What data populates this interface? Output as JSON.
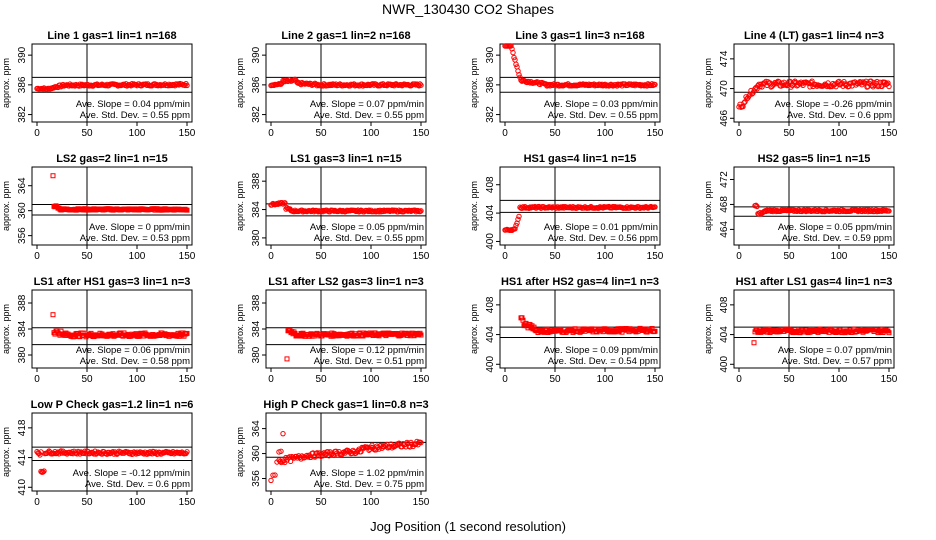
{
  "figure": {
    "title": "NWR_130430  CO2 Shapes",
    "xlabel": "Jog Position (1 second resolution)"
  },
  "colors": {
    "points": "#ff0000",
    "axes": "#000000",
    "background": "#ffffff"
  },
  "chart_data": [
    {
      "type": "scatter",
      "title": "Line 1 gas=1 lin=1 n=168",
      "ylabel": "approx. ppm",
      "xlim": [
        -5,
        155
      ],
      "ylim": [
        381,
        391.5
      ],
      "xticks": [
        0,
        50,
        100,
        150
      ],
      "yticks": [
        382,
        386,
        390
      ],
      "hlines": [
        387,
        385
      ],
      "vline": 50,
      "slope_text": "Ave. Slope = 0.04  ppm/min",
      "std_text": "Ave. Std. Dev. = 0.55  ppm",
      "segments": [
        {
          "x": [
            0,
            8
          ],
          "y": [
            385.5,
            385.5
          ],
          "n": 9,
          "jitter": 0.1,
          "shape": "circle"
        },
        {
          "x": [
            9,
            16
          ],
          "y": [
            385.4,
            385.6
          ],
          "n": 8,
          "jitter": 0.1,
          "shape": "circle"
        },
        {
          "x": [
            17,
            26
          ],
          "y": [
            385.7,
            385.9
          ],
          "n": 10,
          "jitter": 0.15,
          "shape": "circle"
        },
        {
          "x": [
            27,
            150
          ],
          "y": [
            385.95,
            386.05
          ],
          "n": 124,
          "jitter": 0.15,
          "shape": "circle"
        }
      ]
    },
    {
      "type": "scatter",
      "title": "Line 2 gas=1 lin=2 n=168",
      "ylabel": "approx. ppm",
      "xlim": [
        -5,
        155
      ],
      "ylim": [
        381,
        391.5
      ],
      "xticks": [
        0,
        50,
        100,
        150
      ],
      "yticks": [
        382,
        386,
        390
      ],
      "hlines": [
        387,
        385
      ],
      "vline": 50,
      "slope_text": "Ave. Slope = 0.07  ppm/min",
      "std_text": "Ave. Std. Dev. = 0.55  ppm",
      "segments": [
        {
          "x": [
            0,
            10
          ],
          "y": [
            386.0,
            386.1
          ],
          "n": 11,
          "jitter": 0.1,
          "shape": "circle"
        },
        {
          "x": [
            11,
            25
          ],
          "y": [
            386.4,
            386.6
          ],
          "n": 15,
          "jitter": 0.2,
          "shape": "circle"
        },
        {
          "x": [
            26,
            45
          ],
          "y": [
            386.2,
            386.05
          ],
          "n": 20,
          "jitter": 0.15,
          "shape": "circle"
        },
        {
          "x": [
            46,
            150
          ],
          "y": [
            386.0,
            386.0
          ],
          "n": 105,
          "jitter": 0.15,
          "shape": "circle"
        }
      ]
    },
    {
      "type": "scatter",
      "title": "Line 3 gas=1 lin=3 n=168",
      "ylabel": "approx. ppm",
      "xlim": [
        -5,
        155
      ],
      "ylim": [
        381,
        391.5
      ],
      "xticks": [
        0,
        50,
        100,
        150
      ],
      "yticks": [
        382,
        386,
        390
      ],
      "hlines": [
        387,
        385
      ],
      "vline": 50,
      "slope_text": "Ave. Slope = 0.03  ppm/min",
      "std_text": "Ave. Std. Dev. = 0.55  ppm",
      "segments": [
        {
          "x": [
            0,
            6
          ],
          "y": [
            391.4,
            391.2
          ],
          "n": 7,
          "jitter": 0.1,
          "shape": "circle"
        },
        {
          "x": [
            7,
            15
          ],
          "y": [
            390.8,
            387.0
          ],
          "n": 9,
          "jitter": 0.2,
          "shape": "circle"
        },
        {
          "x": [
            16,
            40
          ],
          "y": [
            386.6,
            386.1
          ],
          "n": 25,
          "jitter": 0.15,
          "shape": "circle"
        },
        {
          "x": [
            41,
            150
          ],
          "y": [
            386.0,
            386.0
          ],
          "n": 110,
          "jitter": 0.15,
          "shape": "circle"
        }
      ]
    },
    {
      "type": "scatter",
      "title": "Line 4 (LT) gas=1 lin=4 n=3",
      "ylabel": "approx. ppm",
      "xlim": [
        -5,
        155
      ],
      "ylim": [
        465.5,
        476
      ],
      "xticks": [
        0,
        50,
        100,
        150
      ],
      "yticks": [
        466,
        470,
        474
      ],
      "hlines": [
        471.6,
        469.5
      ],
      "vline": 50,
      "slope_text": "Ave. Slope = -0.26  ppm/min",
      "std_text": "Ave. Std. Dev. = 0.6  ppm",
      "segments": [
        {
          "x": [
            0,
            6
          ],
          "y": [
            467.6,
            468.0
          ],
          "n": 7,
          "jitter": 0.3,
          "shape": "circle"
        },
        {
          "x": [
            7,
            18
          ],
          "y": [
            468.8,
            470.2
          ],
          "n": 12,
          "jitter": 0.3,
          "shape": "circle"
        },
        {
          "x": [
            19,
            150
          ],
          "y": [
            470.6,
            470.6
          ],
          "n": 132,
          "jitter": 0.4,
          "shape": "circle"
        }
      ]
    },
    {
      "type": "scatter",
      "title": "LS2 gas=2 lin=1 n=15",
      "ylabel": "approx. ppm",
      "xlim": [
        -5,
        155
      ],
      "ylim": [
        354.5,
        367
      ],
      "xticks": [
        0,
        50,
        100,
        150
      ],
      "yticks": [
        356,
        360,
        364
      ],
      "hlines": [
        361,
        359.3
      ],
      "vline": 50,
      "slope_text": "Ave. Slope = 0  ppm/min",
      "std_text": "Ave. Std. Dev. = 0.53  ppm",
      "segments": [
        {
          "x": [
            16,
            16
          ],
          "y": [
            365.6,
            365.6
          ],
          "n": 1,
          "jitter": 0,
          "shape": "square"
        },
        {
          "x": [
            17,
            22
          ],
          "y": [
            360.8,
            360.5
          ],
          "n": 6,
          "jitter": 0.15,
          "shape": "square"
        },
        {
          "x": [
            23,
            150
          ],
          "y": [
            360.2,
            360.2
          ],
          "n": 128,
          "jitter": 0.12,
          "shape": "square"
        }
      ]
    },
    {
      "type": "scatter",
      "title": "LS1 gas=3 lin=1 n=15",
      "ylabel": "approx. ppm",
      "xlim": [
        -5,
        155
      ],
      "ylim": [
        379,
        390
      ],
      "xticks": [
        0,
        50,
        100,
        150
      ],
      "yticks": [
        380,
        384,
        388
      ],
      "hlines": [
        384.8,
        383.1
      ],
      "vline": 50,
      "slope_text": "Ave. Slope = 0.05  ppm/min",
      "std_text": "Ave. Std. Dev. = 0.55  ppm",
      "segments": [
        {
          "x": [
            0,
            14
          ],
          "y": [
            384.7,
            384.9
          ],
          "n": 15,
          "jitter": 0.12,
          "shape": "circle"
        },
        {
          "x": [
            15,
            20
          ],
          "y": [
            384.2,
            383.9
          ],
          "n": 6,
          "jitter": 0.15,
          "shape": "circle"
        },
        {
          "x": [
            21,
            150
          ],
          "y": [
            383.8,
            383.8
          ],
          "n": 130,
          "jitter": 0.12,
          "shape": "circle"
        }
      ]
    },
    {
      "type": "scatter",
      "title": "HS1 gas=4 lin=1 n=15",
      "ylabel": "approx. ppm",
      "xlim": [
        -5,
        155
      ],
      "ylim": [
        399.5,
        410.5
      ],
      "xticks": [
        0,
        50,
        100,
        150
      ],
      "yticks": [
        400,
        404,
        408
      ],
      "hlines": [
        405.8,
        404.1
      ],
      "vline": 50,
      "slope_text": "Ave. Slope = 0.01  ppm/min",
      "std_text": "Ave. Std. Dev. = 0.56  ppm",
      "segments": [
        {
          "x": [
            0,
            10
          ],
          "y": [
            401.6,
            401.7
          ],
          "n": 11,
          "jitter": 0.1,
          "shape": "circle"
        },
        {
          "x": [
            11,
            14
          ],
          "y": [
            402.2,
            403.6
          ],
          "n": 4,
          "jitter": 0.1,
          "shape": "circle"
        },
        {
          "x": [
            15,
            150
          ],
          "y": [
            404.8,
            404.8
          ],
          "n": 136,
          "jitter": 0.12,
          "shape": "circle"
        }
      ]
    },
    {
      "type": "scatter",
      "title": "HS2 gas=5 lin=1 n=15",
      "ylabel": "approx. ppm",
      "xlim": [
        -5,
        155
      ],
      "ylim": [
        461.5,
        474
      ],
      "xticks": [
        0,
        50,
        100,
        150
      ],
      "yticks": [
        464,
        468,
        472
      ],
      "hlines": [
        467.6,
        466.1
      ],
      "vline": 50,
      "slope_text": "Ave. Slope = 0.05  ppm/min",
      "std_text": "Ave. Std. Dev. = 0.59  ppm",
      "segments": [
        {
          "x": [
            16,
            18
          ],
          "y": [
            467.9,
            467.7
          ],
          "n": 3,
          "jitter": 0.1,
          "shape": "circle"
        },
        {
          "x": [
            19,
            26
          ],
          "y": [
            466.4,
            466.8
          ],
          "n": 8,
          "jitter": 0.2,
          "shape": "circle"
        },
        {
          "x": [
            27,
            150
          ],
          "y": [
            467.0,
            467.0
          ],
          "n": 124,
          "jitter": 0.14,
          "shape": "circle"
        }
      ]
    },
    {
      "type": "scatter",
      "title": "LS1 after HS1 gas=3 lin=1 n=3",
      "ylabel": "approx. ppm",
      "xlim": [
        -5,
        155
      ],
      "ylim": [
        378,
        390
      ],
      "xticks": [
        0,
        50,
        100,
        150
      ],
      "yticks": [
        380,
        384,
        388
      ],
      "hlines": [
        384.2,
        381.6
      ],
      "vline": 50,
      "slope_text": "Ave. Slope = 0.06  ppm/min",
      "std_text": "Ave. Std. Dev. = 0.58  ppm",
      "segments": [
        {
          "x": [
            16,
            16
          ],
          "y": [
            386.2,
            386.2
          ],
          "n": 1,
          "jitter": 0,
          "shape": "square"
        },
        {
          "x": [
            17,
            24
          ],
          "y": [
            383.6,
            383.4
          ],
          "n": 8,
          "jitter": 0.4,
          "shape": "square"
        },
        {
          "x": [
            25,
            150
          ],
          "y": [
            383.1,
            383.1
          ],
          "n": 126,
          "jitter": 0.3,
          "shape": "square"
        }
      ]
    },
    {
      "type": "scatter",
      "title": "LS1 after LS2 gas=3 lin=1 n=3",
      "ylabel": "approx. ppm",
      "xlim": [
        -5,
        155
      ],
      "ylim": [
        378,
        390
      ],
      "xticks": [
        0,
        50,
        100,
        150
      ],
      "yticks": [
        380,
        384,
        388
      ],
      "hlines": [
        384.2,
        381.6
      ],
      "vline": 50,
      "slope_text": "Ave. Slope = 0.12  ppm/min",
      "std_text": "Ave. Std. Dev. = 0.51  ppm",
      "segments": [
        {
          "x": [
            16,
            16
          ],
          "y": [
            379.4,
            379.4
          ],
          "n": 1,
          "jitter": 0,
          "shape": "square"
        },
        {
          "x": [
            17,
            24
          ],
          "y": [
            383.8,
            383.4
          ],
          "n": 8,
          "jitter": 0.3,
          "shape": "square"
        },
        {
          "x": [
            25,
            150
          ],
          "y": [
            383.1,
            383.2
          ],
          "n": 126,
          "jitter": 0.25,
          "shape": "square"
        }
      ]
    },
    {
      "type": "scatter",
      "title": "HS1 after HS2 gas=4 lin=1 n=3",
      "ylabel": "approx. ppm",
      "xlim": [
        -5,
        155
      ],
      "ylim": [
        399.5,
        410
      ],
      "xticks": [
        0,
        50,
        100,
        150
      ],
      "yticks": [
        400,
        404,
        408
      ],
      "hlines": [
        405.0,
        403.6
      ],
      "vline": 50,
      "slope_text": "Ave. Slope = 0.09  ppm/min",
      "std_text": "Ave. Std. Dev. = 0.54  ppm",
      "segments": [
        {
          "x": [
            16,
            18
          ],
          "y": [
            406.4,
            405.9
          ],
          "n": 3,
          "jitter": 0.2,
          "shape": "square"
        },
        {
          "x": [
            19,
            30
          ],
          "y": [
            405.3,
            404.9
          ],
          "n": 12,
          "jitter": 0.3,
          "shape": "square"
        },
        {
          "x": [
            31,
            150
          ],
          "y": [
            404.5,
            404.6
          ],
          "n": 120,
          "jitter": 0.25,
          "shape": "square"
        }
      ]
    },
    {
      "type": "scatter",
      "title": "HS1 after LS1 gas=4 lin=1 n=3",
      "ylabel": "approx. ppm",
      "xlim": [
        -5,
        155
      ],
      "ylim": [
        399.5,
        410
      ],
      "xticks": [
        0,
        50,
        100,
        150
      ],
      "yticks": [
        400,
        404,
        408
      ],
      "hlines": [
        405.0,
        403.6
      ],
      "vline": 50,
      "slope_text": "Ave. Slope = 0.07  ppm/min",
      "std_text": "Ave. Std. Dev. = 0.57  ppm",
      "segments": [
        {
          "x": [
            15,
            15
          ],
          "y": [
            402.9,
            402.9
          ],
          "n": 1,
          "jitter": 0,
          "shape": "square"
        },
        {
          "x": [
            16,
            150
          ],
          "y": [
            404.5,
            404.5
          ],
          "n": 135,
          "jitter": 0.25,
          "shape": "square"
        }
      ]
    },
    {
      "type": "scatter",
      "title": "Low P Check gas=1.2 lin=1 n=6",
      "ylabel": "approx. ppm",
      "xlim": [
        -5,
        155
      ],
      "ylim": [
        409.5,
        420
      ],
      "xticks": [
        0,
        50,
        100,
        150
      ],
      "yticks": [
        410,
        414,
        418
      ],
      "hlines": [
        415.4,
        413.6
      ],
      "vline": 50,
      "slope_text": "Ave. Slope = -0.12  ppm/min",
      "std_text": "Ave. Std. Dev. = 0.6  ppm",
      "segments": [
        {
          "x": [
            0,
            4
          ],
          "y": [
            414.8,
            414.6
          ],
          "n": 5,
          "jitter": 0.3,
          "shape": "circle"
        },
        {
          "x": [
            4,
            7
          ],
          "y": [
            412.0,
            412.2
          ],
          "n": 4,
          "jitter": 0.15,
          "shape": "circle"
        },
        {
          "x": [
            8,
            150
          ],
          "y": [
            414.7,
            414.6
          ],
          "n": 143,
          "jitter": 0.2,
          "shape": "circle"
        }
      ]
    },
    {
      "type": "scatter",
      "title": "High P Check gas=1 lin=0.8 n=3",
      "ylabel": "approx. ppm",
      "xlim": [
        -5,
        155
      ],
      "ylim": [
        354,
        366.5
      ],
      "xticks": [
        0,
        50,
        100,
        150
      ],
      "yticks": [
        356,
        360,
        364
      ],
      "hlines": [
        361.8,
        359.4
      ],
      "vline": 50,
      "slope_text": "Ave. Slope = 1.02  ppm/min",
      "std_text": "Ave. Std. Dev. = 0.75  ppm",
      "segments": [
        {
          "x": [
            0,
            12
          ],
          "y": [
            355.0,
            362.6
          ],
          "n": 7,
          "jitter": 1.2,
          "shape": "circle"
        },
        {
          "x": [
            8,
            30
          ],
          "y": [
            358.8,
            359.4
          ],
          "n": 20,
          "jitter": 0.4,
          "shape": "circle"
        },
        {
          "x": [
            31,
            90
          ],
          "y": [
            359.6,
            360.4
          ],
          "n": 60,
          "jitter": 0.35,
          "shape": "circle"
        },
        {
          "x": [
            91,
            150
          ],
          "y": [
            360.8,
            361.6
          ],
          "n": 60,
          "jitter": 0.4,
          "shape": "circle"
        }
      ]
    }
  ]
}
